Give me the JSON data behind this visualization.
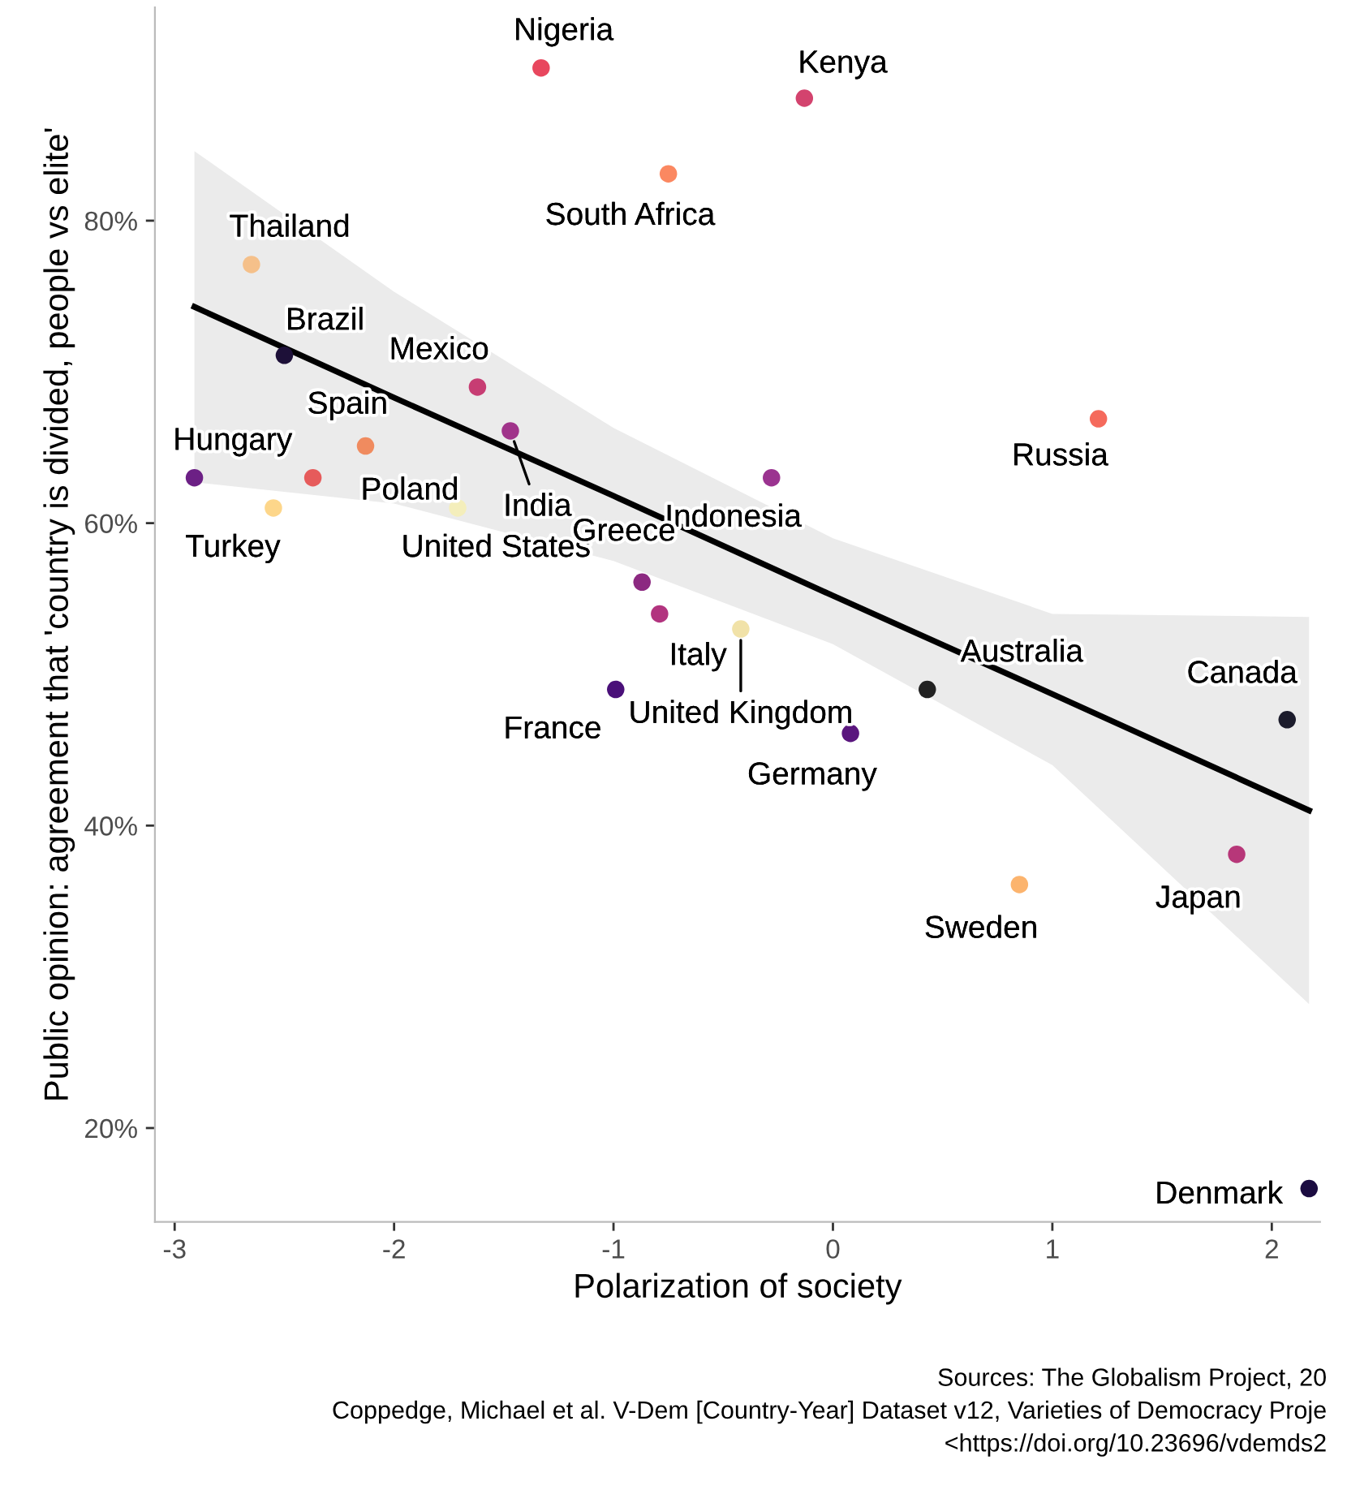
{
  "chart_data": {
    "type": "scatter",
    "xlabel": "Polarization of society",
    "ylabel": "Public opinion: agreement that 'country is divided, people vs elite'",
    "xlim": [
      -3.09,
      2.22
    ],
    "ylim": [
      13.8,
      94.1
    ],
    "xticks": [
      {
        "value": -3,
        "label": "-3"
      },
      {
        "value": -2,
        "label": "-2"
      },
      {
        "value": -1,
        "label": "-1"
      },
      0,
      1,
      2
    ],
    "yticks": [
      {
        "value": 20,
        "label": "20%"
      },
      {
        "value": 40,
        "label": "40%"
      },
      {
        "value": 60,
        "label": "60%"
      },
      {
        "value": 80,
        "label": "80%"
      }
    ],
    "grid": false,
    "legend": false,
    "marker": "circle",
    "series": [
      {
        "type": "line",
        "color": "#000000",
        "line_style": "solid",
        "marker": "none",
        "x": [
          -2.91,
          -2,
          -1,
          0,
          1,
          2.17
        ],
        "values": [
          74.3,
          68.3,
          61.8,
          55.2,
          48.7,
          41.0
        ],
        "lower": [
          62.7,
          61.3,
          57.5,
          52.0,
          44.0,
          28.2
        ],
        "upper": [
          84.6,
          75.3,
          66.3,
          59.0,
          54.0,
          53.8
        ]
      },
      {
        "x": [
          -1.33,
          -0.13,
          -0.75,
          -2.65,
          -2.5,
          -1.62,
          -2.13,
          -1.47,
          -2.91,
          -2.37,
          -2.55,
          -1.71,
          -0.28,
          1.21,
          -0.87,
          -0.79,
          -0.42,
          -0.99,
          0.43,
          0.08,
          2.07,
          1.84,
          0.85,
          2.17
        ],
        "values": [
          90.1,
          88.1,
          83.1,
          77.1,
          71.1,
          69.0,
          65.1,
          66.1,
          63.0,
          63.0,
          61.0,
          61.0,
          63.0,
          66.9,
          56.1,
          54.0,
          53.0,
          49.0,
          49.0,
          46.1,
          47.0,
          38.1,
          36.1,
          16.0
        ],
        "colors": [
          "#e8475e",
          "#d3436e",
          "#fb8861",
          "#f5c08a",
          "#1d1038",
          "#c73d73",
          "#f08b5f",
          "#a0338a",
          "#6c2085",
          "#e65b5b",
          "#fdd68a",
          "#f4eebb",
          "#9b3390",
          "#f56a5c",
          "#8c2981",
          "#b2347f",
          "#f1e2a8",
          "#4a1079",
          "#222222",
          "#5a167e",
          "#1c1c2c",
          "#b73779",
          "#fcb46e",
          "#1b0c41"
        ]
      }
    ],
    "annotations": [
      {
        "text": "Nigeria",
        "x": -1.33,
        "y": 90.1
      },
      {
        "text": "Kenya",
        "x": -0.13,
        "y": 88.1
      },
      {
        "text": "South Africa",
        "x": -0.75,
        "y": 83.1
      },
      {
        "text": "Thailand",
        "x": -2.65,
        "y": 77.1
      },
      {
        "text": "Brazil",
        "x": -2.5,
        "y": 71.1
      },
      {
        "text": "Mexico",
        "x": -1.62,
        "y": 69.0
      },
      {
        "text": "Spain",
        "x": -2.13,
        "y": 65.1
      },
      {
        "text": "India",
        "x": -1.47,
        "y": 66.1
      },
      {
        "text": "Hungary",
        "x": -2.91,
        "y": 63.0
      },
      {
        "text": "Poland",
        "x": -2.37,
        "y": 63.0
      },
      {
        "text": "Turkey",
        "x": -2.55,
        "y": 61.0
      },
      {
        "text": "United States",
        "x": -1.71,
        "y": 61.0
      },
      {
        "text": "Indonesia",
        "x": -0.28,
        "y": 63.0
      },
      {
        "text": "Russia",
        "x": 1.21,
        "y": 66.9
      },
      {
        "text": "Greece",
        "x": -0.87,
        "y": 56.1
      },
      {
        "text": "Italy",
        "x": -0.79,
        "y": 54.0
      },
      {
        "text": "United Kingdom",
        "x": -0.42,
        "y": 53.0
      },
      {
        "text": "France",
        "x": -0.99,
        "y": 49.0
      },
      {
        "text": "Australia",
        "x": 0.43,
        "y": 49.0
      },
      {
        "text": "Germany",
        "x": 0.08,
        "y": 46.1
      },
      {
        "text": "Canada",
        "x": 2.07,
        "y": 47.0
      },
      {
        "text": "Japan",
        "x": 1.84,
        "y": 38.1
      },
      {
        "text": "Sweden",
        "x": 0.85,
        "y": 36.1
      },
      {
        "text": "Denmark",
        "x": 2.17,
        "y": 16.0
      },
      "Sources: The Globalism Project, 20",
      "Coppedge, Michael et al. V-Dem [Country-Year] Dataset v12, Varieties of Democracy Proje",
      "<https://doi.org/10.23696/vdemds2"
    ]
  }
}
